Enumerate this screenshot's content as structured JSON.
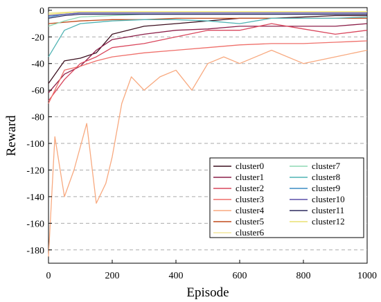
{
  "chart_data": {
    "type": "line",
    "title": "",
    "xlabel": "Episode",
    "ylabel": "Reward",
    "xlim": [
      0,
      1000
    ],
    "ylim": [
      -190,
      2
    ],
    "xticks": [
      0,
      200,
      400,
      600,
      800,
      1000
    ],
    "yticks": [
      0,
      -20,
      -40,
      -60,
      -80,
      -100,
      -120,
      -140,
      -160,
      -180
    ],
    "grid": "horizontal dashed",
    "legend_position": "bottom-right",
    "series": [
      {
        "name": "cluster0",
        "color": "#3b0f1f",
        "x": [
          0,
          50,
          100,
          150,
          200,
          300,
          400,
          500,
          600,
          700,
          800,
          900,
          1000
        ],
        "y": [
          -55,
          -38,
          -36,
          -32,
          -18,
          -12,
          -10,
          -8,
          -6,
          -6,
          -5,
          -4,
          -4
        ]
      },
      {
        "name": "cluster1",
        "color": "#8b1e48",
        "x": [
          0,
          50,
          100,
          150,
          200,
          300,
          400,
          500,
          600,
          700,
          800,
          900,
          1000
        ],
        "y": [
          -62,
          -48,
          -42,
          -30,
          -22,
          -18,
          -15,
          -14,
          -12,
          -12,
          -12,
          -12,
          -10
        ]
      },
      {
        "name": "cluster2",
        "color": "#d9465c",
        "x": [
          0,
          50,
          100,
          150,
          200,
          300,
          400,
          500,
          600,
          700,
          800,
          900,
          1000
        ],
        "y": [
          -68,
          -52,
          -40,
          -35,
          -28,
          -25,
          -20,
          -15,
          -15,
          -10,
          -14,
          -18,
          -15
        ]
      },
      {
        "name": "cluster3",
        "color": "#ef6f6a",
        "x": [
          0,
          50,
          100,
          150,
          200,
          300,
          400,
          500,
          600,
          700,
          800,
          900,
          1000
        ],
        "y": [
          -70,
          -45,
          -42,
          -38,
          -35,
          -32,
          -30,
          -28,
          -26,
          -25,
          -25,
          -24,
          -23
        ]
      },
      {
        "name": "cluster4",
        "color": "#f8a97f",
        "x": [
          0,
          20,
          50,
          80,
          120,
          150,
          180,
          200,
          230,
          260,
          300,
          350,
          400,
          450,
          500,
          550,
          600,
          700,
          800,
          900,
          1000
        ],
        "y": [
          -185,
          -95,
          -140,
          -120,
          -85,
          -145,
          -130,
          -110,
          -70,
          -50,
          -60,
          -50,
          -45,
          -60,
          -40,
          -35,
          -40,
          -30,
          -40,
          -35,
          -30
        ]
      },
      {
        "name": "cluster5",
        "color": "#c04a1a",
        "x": [
          0,
          100,
          200,
          300,
          400,
          500,
          600,
          700,
          800,
          900,
          1000
        ],
        "y": [
          -10,
          -8,
          -7,
          -7,
          -6,
          -6,
          -6,
          -6,
          -6,
          -6,
          -6
        ]
      },
      {
        "name": "cluster6",
        "color": "#f3e79b",
        "x": [
          0,
          100,
          200,
          300,
          400,
          500,
          600,
          700,
          800,
          900,
          1000
        ],
        "y": [
          -2,
          -1,
          -1,
          -1,
          -1,
          -1,
          -1,
          -1,
          -1,
          -1,
          -1
        ]
      },
      {
        "name": "cluster7",
        "color": "#8ed8b3",
        "x": [
          0,
          50,
          100,
          200,
          300,
          400,
          500,
          600,
          700,
          800,
          900,
          1000
        ],
        "y": [
          -12,
          -8,
          -5,
          -4,
          -3,
          -3,
          -3,
          -3,
          -3,
          -3,
          -3,
          -3
        ]
      },
      {
        "name": "cluster8",
        "color": "#4fb3b3",
        "x": [
          0,
          50,
          100,
          200,
          300,
          400,
          500,
          600,
          700,
          800,
          900,
          1000
        ],
        "y": [
          -35,
          -15,
          -10,
          -8,
          -7,
          -7,
          -8,
          -10,
          -6,
          -6,
          -6,
          -5
        ]
      },
      {
        "name": "cluster9",
        "color": "#3a8bc4",
        "x": [
          0,
          50,
          100,
          200,
          300,
          400,
          500,
          600,
          700,
          800,
          900,
          1000
        ],
        "y": [
          -5,
          -3,
          -2,
          -2,
          -2,
          -2,
          -2,
          -2,
          -2,
          -2,
          -2,
          -2
        ]
      },
      {
        "name": "cluster10",
        "color": "#5a4fa8",
        "x": [
          0,
          50,
          100,
          200,
          300,
          400,
          500,
          600,
          700,
          800,
          900,
          1000
        ],
        "y": [
          -4,
          -3,
          -2,
          -2,
          -2,
          -2,
          -2,
          -2,
          -2,
          -2,
          -2,
          -2
        ]
      },
      {
        "name": "cluster11",
        "color": "#2d2a5e",
        "x": [
          0,
          50,
          100,
          200,
          300,
          400,
          500,
          600,
          700,
          800,
          900,
          1000
        ],
        "y": [
          -6,
          -4,
          -3,
          -3,
          -3,
          -3,
          -3,
          -3,
          -3,
          -3,
          -3,
          -3
        ]
      },
      {
        "name": "cluster12",
        "color": "#e8e070",
        "x": [
          0,
          50,
          100,
          200,
          300,
          400,
          500,
          600,
          700,
          800,
          900,
          1000
        ],
        "y": [
          -3,
          -2,
          -1,
          -1,
          -1,
          -1,
          -1,
          -1,
          -1,
          -1,
          -1,
          -1
        ]
      }
    ]
  }
}
